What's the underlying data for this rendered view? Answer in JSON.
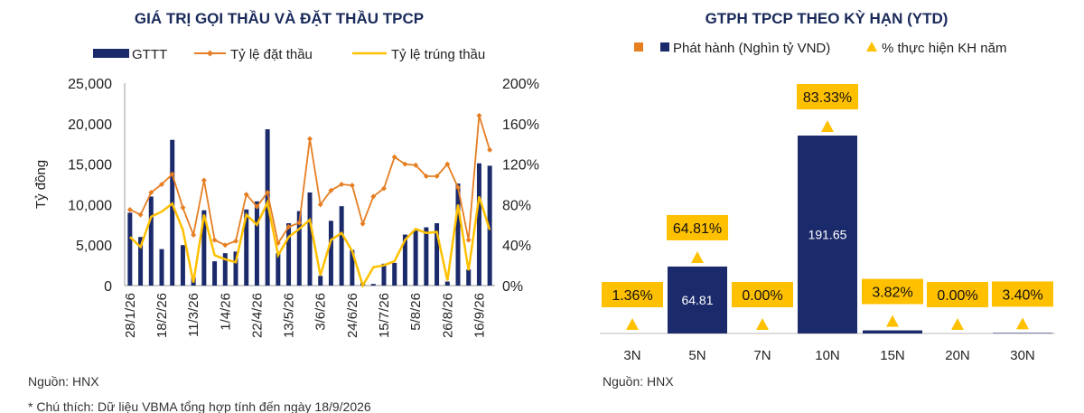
{
  "left": {
    "title": "GIÁ TRỊ GỌI THẦU VÀ ĐẶT THẦU TPCP",
    "legend": {
      "bar": "GTTT",
      "line1": "Tỷ lệ đặt thầu",
      "line2": "Tỷ lệ trúng thầu"
    },
    "ylabel": "Tỷ đồng",
    "source": "Nguồn: HNX",
    "footnote": "* Chú thích: Dữ liệu VBMA tổng hợp tính đến ngày 18/9/2026"
  },
  "right": {
    "title": "GTPH TPCP THEO KỲ HẠN (YTD)",
    "legend": {
      "orange": "",
      "bar": "Phát hành (Nghìn tỷ VND)",
      "tri": "% thực hiện KH năm"
    },
    "source": "Nguồn: HNX"
  },
  "colors": {
    "navy": "#1b2a6b",
    "orange": "#e67e22",
    "yellow": "#ffc000",
    "title": "#1a2a5a"
  },
  "chart_data": [
    {
      "type": "bar",
      "title": "GIÁ TRỊ GỌI THẦU VÀ ĐẶT THẦU TPCP",
      "ylabel": "Tỷ đồng",
      "ylim": [
        0,
        25000
      ],
      "y2lim": [
        0,
        2.0
      ],
      "yticks": [
        "0",
        "5,000",
        "10,000",
        "15,000",
        "20,000",
        "25,000"
      ],
      "y2ticks": [
        "0%",
        "40%",
        "80%",
        "120%",
        "160%",
        "200%"
      ],
      "x_tick_labels": [
        "28/1/26",
        "18/2/26",
        "11/3/26",
        "1/4/26",
        "22/4/26",
        "13/5/26",
        "3/6/26",
        "24/6/26",
        "15/7/26",
        "5/8/26",
        "26/8/26",
        "16/9/26"
      ],
      "series": [
        {
          "name": "GTTT",
          "type": "bar",
          "values": [
            9000,
            6000,
            11000,
            4500,
            18000,
            5000,
            1000,
            9300,
            3000,
            4000,
            4200,
            9400,
            10400,
            19300,
            4000,
            7700,
            9200,
            11500,
            1200,
            8000,
            9800,
            4400,
            400,
            200,
            2700,
            2800,
            6300,
            6800,
            7200,
            7700,
            500,
            12600,
            2000,
            15100,
            14800
          ]
        },
        {
          "name": "Tỷ lệ đặt thầu",
          "type": "line",
          "values": [
            0.75,
            0.7,
            0.92,
            1.0,
            1.1,
            0.77,
            0.5,
            1.04,
            0.45,
            0.4,
            0.44,
            0.9,
            0.78,
            0.92,
            0.42,
            0.58,
            0.62,
            1.45,
            0.8,
            0.94,
            1.0,
            0.99,
            0.61,
            0.88,
            0.96,
            1.27,
            1.2,
            1.19,
            1.08,
            1.08,
            1.2,
            0.97,
            0.45,
            1.68,
            1.34
          ]
        },
        {
          "name": "Tỷ lệ trúng thầu",
          "type": "line",
          "values": [
            0.48,
            0.38,
            0.68,
            0.73,
            0.81,
            0.55,
            0.03,
            0.7,
            0.3,
            0.26,
            0.23,
            0.7,
            0.6,
            0.82,
            0.3,
            0.48,
            0.56,
            0.65,
            0.1,
            0.45,
            0.52,
            0.34,
            0.0,
            0.18,
            0.2,
            0.24,
            0.45,
            0.56,
            0.52,
            0.53,
            0.05,
            0.8,
            0.15,
            0.88,
            0.55
          ]
        }
      ]
    },
    {
      "type": "bar",
      "title": "GTPH TPCP THEO KỲ HẠN (YTD)",
      "categories": [
        "3N",
        "5N",
        "7N",
        "10N",
        "15N",
        "20N",
        "30N"
      ],
      "ylim": [
        0,
        240
      ],
      "series": [
        {
          "name": "Phát hành (Nghìn tỷ VND)",
          "values": [
            0,
            64.81,
            0,
            191.65,
            3.0,
            0,
            0.5
          ],
          "labels": [
            "",
            "64.81",
            "",
            "191.65",
            "",
            "",
            ""
          ]
        },
        {
          "name": "% thực hiện KH năm",
          "type": "scatter",
          "values": [
            1.36,
            64.81,
            0.0,
            83.33,
            3.82,
            0.0,
            3.4
          ],
          "labels": [
            "1.36%",
            "64.81%",
            "0.00%",
            "83.33%",
            "3.82%",
            "0.00%",
            "3.40%"
          ]
        }
      ]
    }
  ]
}
